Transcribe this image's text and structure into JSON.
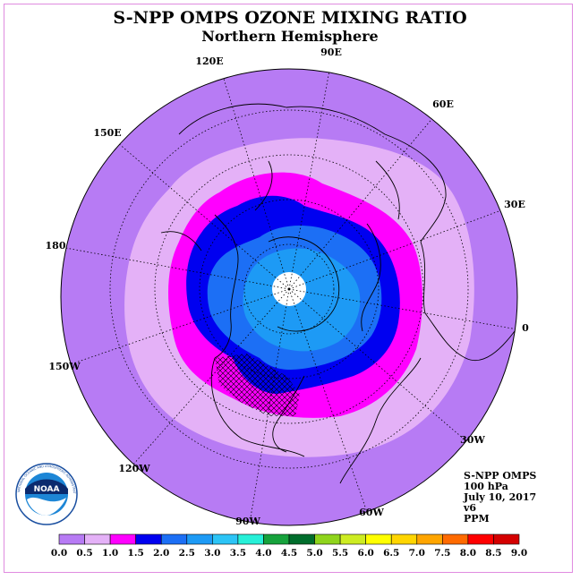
{
  "title": "S-NPP OMPS OZONE MIXING RATIO",
  "subtitle": "Northern Hemisphere",
  "longitude_labels": [
    "90E",
    "60E",
    "30E",
    "0",
    "30W",
    "60W",
    "90W",
    "120W",
    "150W",
    "180",
    "150E",
    "120E"
  ],
  "info": {
    "instrument": "S-NPP OMPS",
    "level": "100 hPa",
    "date": "July 10, 2017",
    "version": "v6",
    "units": "PPM"
  },
  "logo_text": "NATIONAL OCEANIC AND ATMOSPHERIC ADMINISTRATION · U.S. DEPARTMENT OF COMMERCE",
  "logo_label": "NOAA",
  "colorbar": {
    "ticks": [
      "0.0",
      "0.5",
      "1.0",
      "1.5",
      "2.0",
      "2.5",
      "3.0",
      "3.5",
      "4.0",
      "4.5",
      "5.0",
      "5.5",
      "6.0",
      "6.5",
      "7.0",
      "7.5",
      "8.0",
      "8.5",
      "9.0"
    ],
    "colors": [
      "#b77bf4",
      "#e4b1f7",
      "#ff00ff",
      "#0000f0",
      "#1c6ff5",
      "#1d9af5",
      "#2cc4f6",
      "#27f0d8",
      "#16a23c",
      "#006d2c",
      "#8fd41c",
      "#cdec22",
      "#ffff00",
      "#ffd500",
      "#ffa500",
      "#ff6a00",
      "#ff0000",
      "#d40000"
    ]
  },
  "colors": {
    "background_ring": "#b77bf4",
    "light_band": "#e4b1f7",
    "magenta_band": "#ff00ff",
    "blue_band": "#0000f0",
    "mid_blue": "#1c6ff5",
    "light_blue": "#1d9af5",
    "polar_hole": "#ffffff",
    "frame_border": "#e08be0"
  }
}
